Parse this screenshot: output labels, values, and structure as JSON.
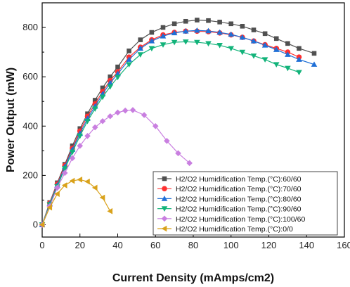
{
  "chart_data": {
    "type": "line",
    "xlabel": "Current Density (mAmps/cm2)",
    "ylabel": "Power Output (mW)",
    "xlim": [
      0,
      160
    ],
    "ylim": [
      -50,
      900
    ],
    "xticks": [
      0,
      20,
      40,
      60,
      80,
      100,
      120,
      140,
      160
    ],
    "yticks": [
      0,
      200,
      400,
      600,
      800
    ],
    "grid": false,
    "legend_position": "bottom-right",
    "series": [
      {
        "name": "H2/O2 Humidification Temp.(°C):60/60",
        "marker": "square",
        "color": "#505050",
        "x": [
          0,
          4,
          8,
          12,
          16,
          20,
          24,
          28,
          32,
          36,
          40,
          46,
          52,
          58,
          64,
          70,
          76,
          82,
          88,
          94,
          100,
          106,
          112,
          118,
          124,
          130,
          136,
          144
        ],
        "y": [
          0,
          90,
          170,
          245,
          320,
          390,
          450,
          505,
          555,
          600,
          640,
          705,
          750,
          780,
          800,
          815,
          825,
          830,
          828,
          822,
          815,
          805,
          790,
          775,
          755,
          735,
          715,
          695
        ]
      },
      {
        "name": "H2/O2  Humidification Temp.(°C):70/60",
        "marker": "circle",
        "color": "#ff3030",
        "x": [
          0,
          4,
          8,
          12,
          16,
          20,
          24,
          28,
          32,
          36,
          40,
          46,
          52,
          58,
          64,
          70,
          76,
          82,
          88,
          94,
          100,
          106,
          112,
          118,
          124,
          130,
          136
        ],
        "y": [
          0,
          88,
          165,
          240,
          310,
          380,
          440,
          490,
          540,
          585,
          620,
          680,
          720,
          750,
          770,
          780,
          785,
          785,
          783,
          778,
          770,
          760,
          745,
          730,
          715,
          700,
          680
        ]
      },
      {
        "name": "H2/O2 Humidification Temp.(°C):80/60",
        "marker": "triangle-up",
        "color": "#1f6fd6",
        "x": [
          0,
          4,
          8,
          12,
          16,
          20,
          24,
          28,
          32,
          36,
          40,
          46,
          52,
          58,
          64,
          70,
          76,
          82,
          88,
          94,
          100,
          106,
          112,
          118,
          124,
          130,
          136,
          144
        ],
        "y": [
          0,
          85,
          160,
          235,
          305,
          370,
          430,
          480,
          530,
          575,
          612,
          670,
          715,
          745,
          765,
          778,
          785,
          788,
          786,
          780,
          772,
          760,
          745,
          728,
          710,
          690,
          670,
          650
        ]
      },
      {
        "name": "H2/O2 Humidification Temp.(°C):90/60",
        "marker": "triangle-down",
        "color": "#12b37a",
        "x": [
          0,
          4,
          8,
          12,
          16,
          20,
          24,
          28,
          32,
          36,
          40,
          46,
          52,
          58,
          64,
          70,
          76,
          82,
          88,
          94,
          100,
          106,
          112,
          118,
          124,
          130,
          136
        ],
        "y": [
          0,
          82,
          155,
          228,
          295,
          360,
          420,
          470,
          518,
          560,
          598,
          650,
          690,
          715,
          730,
          740,
          742,
          740,
          735,
          728,
          715,
          700,
          685,
          670,
          650,
          635,
          618
        ]
      },
      {
        "name": "H2/O2 Humidification Temp.(°C):100/60",
        "marker": "diamond",
        "color": "#c97fe0",
        "x": [
          0,
          4,
          8,
          12,
          16,
          20,
          24,
          28,
          32,
          36,
          40,
          44,
          48,
          54,
          60,
          66,
          72,
          78
        ],
        "y": [
          0,
          75,
          150,
          210,
          270,
          320,
          360,
          395,
          420,
          440,
          455,
          463,
          465,
          445,
          400,
          340,
          290,
          250
        ]
      },
      {
        "name": "H2/O2 Humidification Temp.(°C):0/0",
        "marker": "triangle-left",
        "color": "#d9a21b",
        "x": [
          0,
          4,
          8,
          12,
          16,
          20,
          24,
          28,
          32,
          36
        ],
        "y": [
          0,
          70,
          125,
          160,
          178,
          183,
          175,
          150,
          110,
          55
        ]
      }
    ]
  }
}
